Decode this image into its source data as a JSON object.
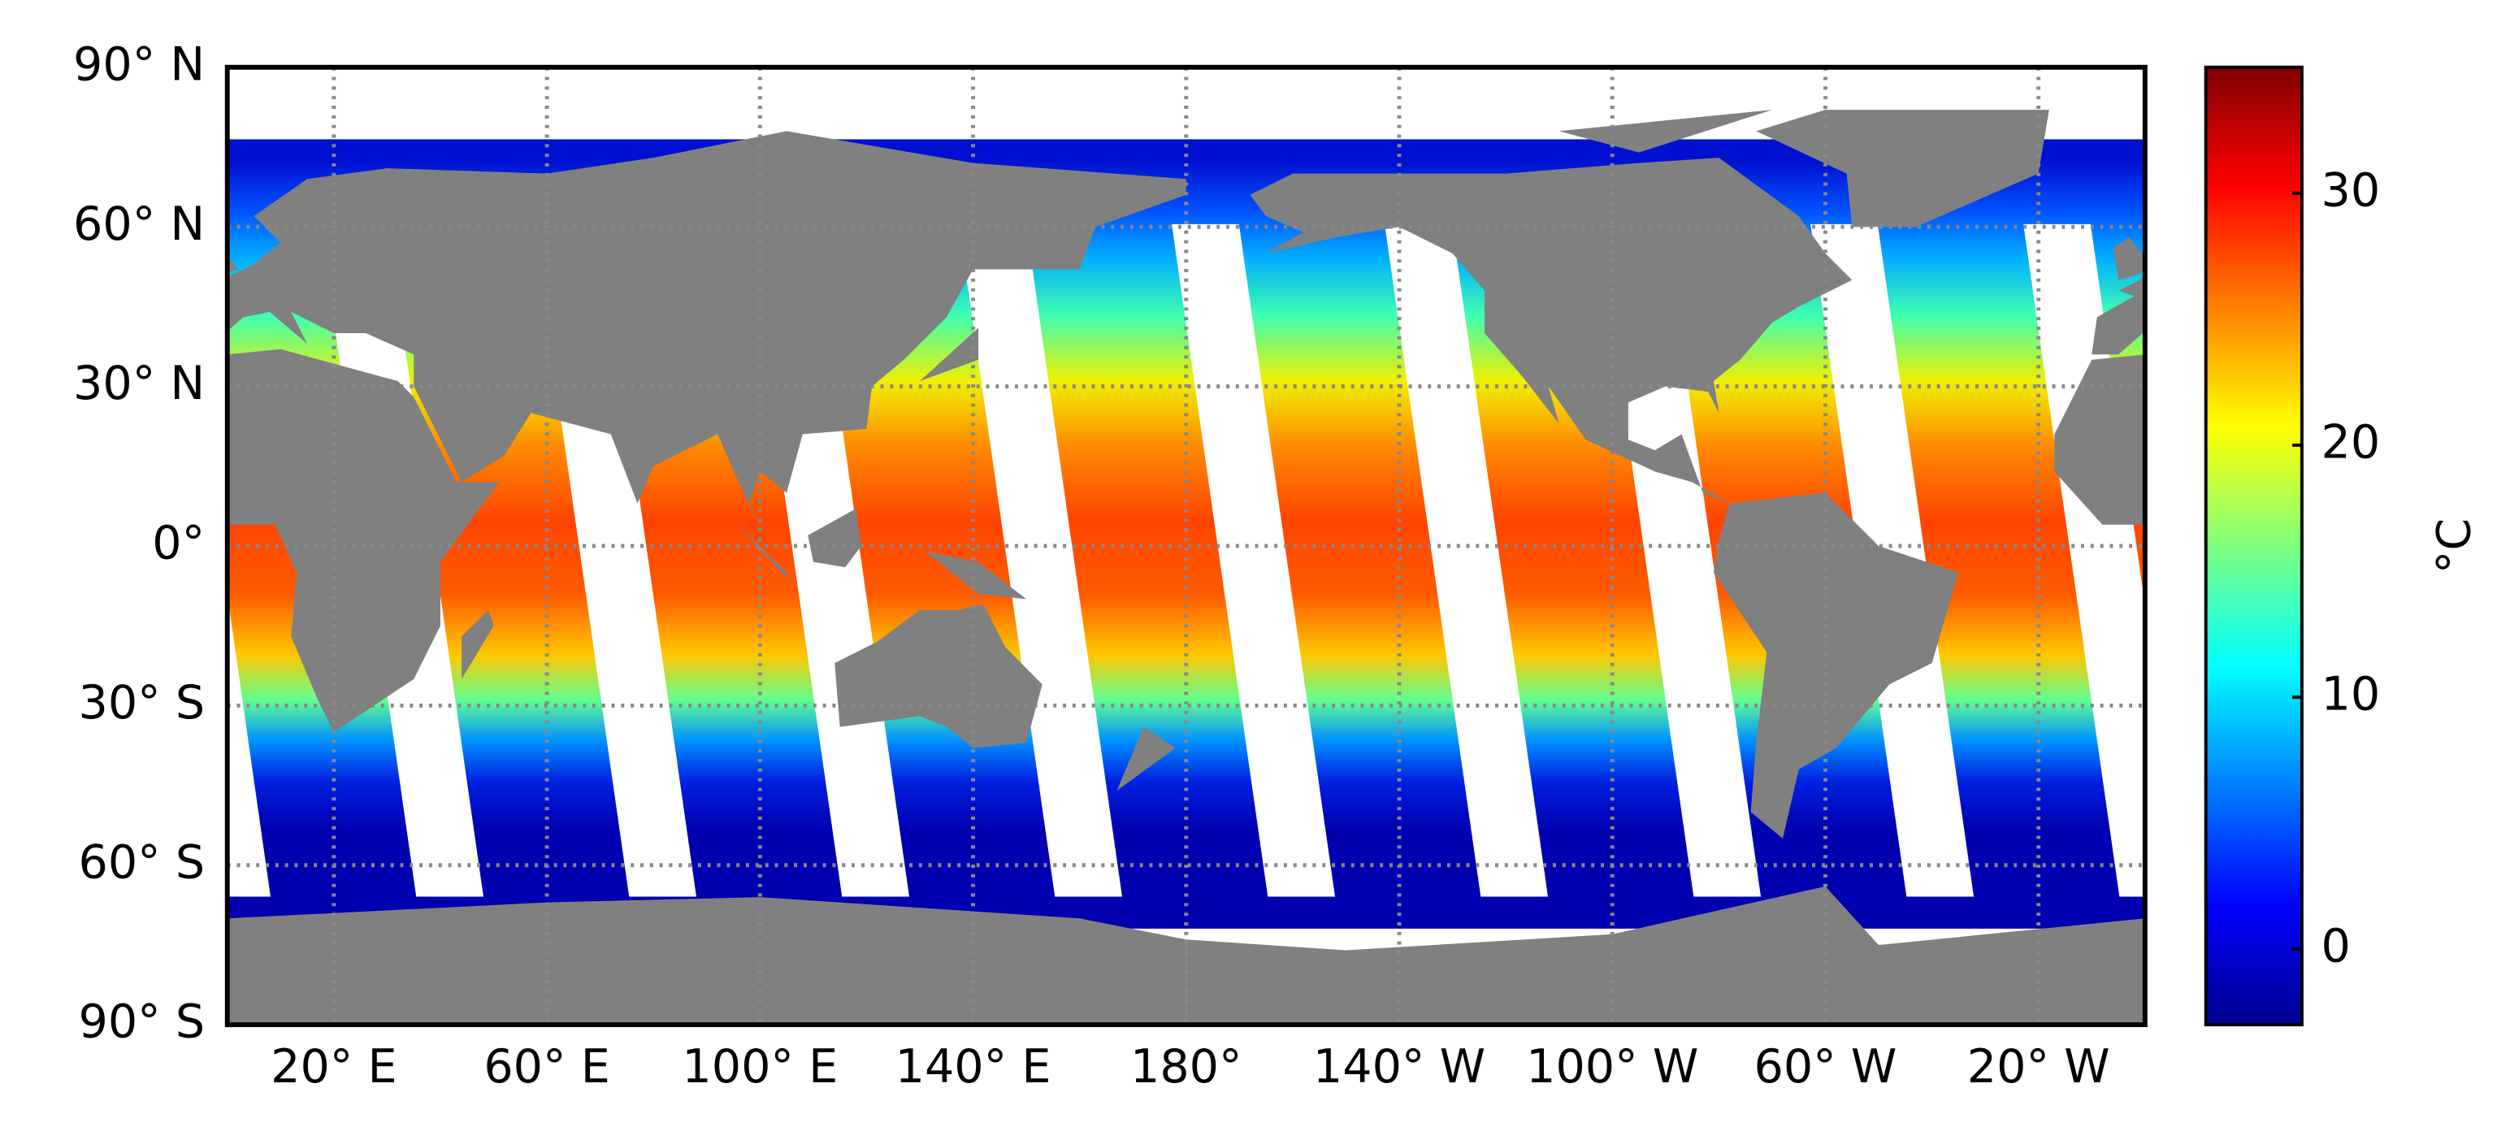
{
  "chart_data": {
    "type": "map",
    "xlim": [
      0,
      360
    ],
    "ylim": [
      -90,
      90
    ],
    "xticks": [
      {
        "value": 20,
        "label": "20° E"
      },
      {
        "value": 60,
        "label": "60° E"
      },
      {
        "value": 100,
        "label": "100° E"
      },
      {
        "value": 140,
        "label": "140° E"
      },
      {
        "value": 180,
        "label": "180°"
      },
      {
        "value": -140,
        "label": "140° W"
      },
      {
        "value": -100,
        "label": "100° W"
      },
      {
        "value": -60,
        "label": "60° W"
      },
      {
        "value": -20,
        "label": "20° W"
      }
    ],
    "yticks": [
      {
        "value": 90,
        "label": "90° N"
      },
      {
        "value": 60,
        "label": "60° N"
      },
      {
        "value": 30,
        "label": "30° N"
      },
      {
        "value": 0,
        "label": "0°"
      },
      {
        "value": -30,
        "label": "30° S"
      },
      {
        "value": -60,
        "label": "60° S"
      },
      {
        "value": -90,
        "label": "90° S"
      }
    ],
    "grid": true,
    "colorbar": {
      "label": "°C",
      "cmap": "jet",
      "lim": [
        -3,
        35
      ],
      "ticks": [
        0,
        10,
        20,
        30
      ]
    }
  }
}
